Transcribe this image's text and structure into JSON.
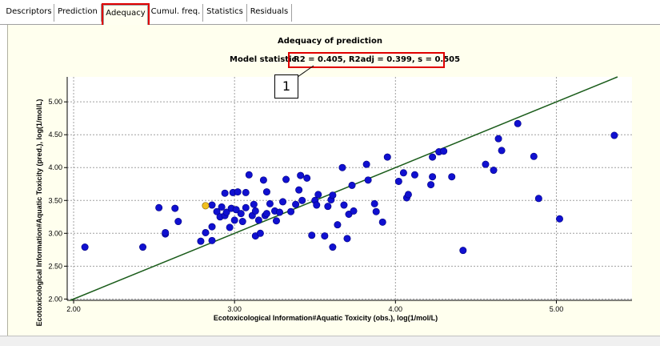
{
  "tabs": [
    {
      "label": "Descriptors"
    },
    {
      "label": "Prediction"
    },
    {
      "label": "Adequacy",
      "active": true
    },
    {
      "label": "Cumul. freq."
    },
    {
      "label": "Statistics"
    },
    {
      "label": "Residuals"
    }
  ],
  "header": {
    "title": "Adequacy of prediction",
    "stat_label": "Model statistic:",
    "stat_value": "R2 = 0.405,  R2adj = 0.399,  s = 0.505"
  },
  "callout": "1",
  "colors": {
    "highlight": "#e00000",
    "point": "#1010d0",
    "point_highlight": "#f0c020",
    "line": "#1a5c1a",
    "panel": "#ffffee"
  },
  "chart_data": {
    "type": "scatter",
    "title": "",
    "xlabel": "Ecotoxicological Information#Aquatic Toxicity (obs.), log(1/mol/L)",
    "ylabel": "Ecotoxicological Information#Aquatic Toxicity (pred.), log(1/mol/L)",
    "xlim": [
      1.96,
      5.47
    ],
    "ylim": [
      1.98,
      5.38
    ],
    "xticks": [
      "2.00",
      "3.00",
      "4.00",
      "5.00"
    ],
    "yticks": [
      "2.00",
      "2.50",
      "3.00",
      "3.50",
      "4.00",
      "4.50",
      "5.00"
    ],
    "grid": true,
    "reference_line": "y = x",
    "highlighted_point": {
      "x": 2.82,
      "y": 3.42
    },
    "points": [
      [
        2.07,
        2.79
      ],
      [
        2.43,
        2.79
      ],
      [
        2.53,
        3.39
      ],
      [
        2.57,
        2.99
      ],
      [
        2.57,
        3.01
      ],
      [
        2.63,
        3.38
      ],
      [
        2.65,
        3.18
      ],
      [
        2.79,
        2.88
      ],
      [
        2.82,
        3.01
      ],
      [
        2.86,
        2.89
      ],
      [
        2.86,
        3.1
      ],
      [
        2.86,
        3.43
      ],
      [
        2.89,
        3.33
      ],
      [
        2.91,
        3.25
      ],
      [
        2.92,
        3.4
      ],
      [
        2.94,
        3.27
      ],
      [
        2.94,
        3.61
      ],
      [
        2.95,
        3.32
      ],
      [
        2.97,
        3.09
      ],
      [
        2.98,
        3.38
      ],
      [
        2.99,
        3.62
      ],
      [
        3.0,
        3.2
      ],
      [
        3.01,
        3.36
      ],
      [
        3.02,
        3.63
      ],
      [
        3.04,
        3.3
      ],
      [
        3.05,
        3.18
      ],
      [
        3.07,
        3.39
      ],
      [
        3.07,
        3.62
      ],
      [
        3.09,
        3.89
      ],
      [
        3.11,
        3.27
      ],
      [
        3.12,
        3.44
      ],
      [
        3.13,
        3.34
      ],
      [
        3.13,
        2.96
      ],
      [
        3.15,
        3.2
      ],
      [
        3.16,
        3.0
      ],
      [
        3.18,
        3.81
      ],
      [
        3.19,
        3.27
      ],
      [
        3.2,
        3.3
      ],
      [
        3.2,
        3.63
      ],
      [
        3.22,
        3.45
      ],
      [
        3.25,
        3.34
      ],
      [
        3.26,
        3.19
      ],
      [
        3.28,
        3.32
      ],
      [
        3.3,
        3.48
      ],
      [
        3.32,
        3.82
      ],
      [
        3.35,
        3.33
      ],
      [
        3.38,
        3.44
      ],
      [
        3.4,
        3.66
      ],
      [
        3.41,
        3.88
      ],
      [
        3.42,
        3.5
      ],
      [
        3.45,
        3.84
      ],
      [
        3.48,
        2.97
      ],
      [
        3.5,
        3.5
      ],
      [
        3.51,
        3.43
      ],
      [
        3.52,
        3.59
      ],
      [
        3.56,
        2.96
      ],
      [
        3.58,
        3.41
      ],
      [
        3.6,
        3.51
      ],
      [
        3.61,
        3.58
      ],
      [
        3.61,
        2.79
      ],
      [
        3.64,
        3.13
      ],
      [
        3.67,
        4.0
      ],
      [
        3.68,
        3.43
      ],
      [
        3.7,
        2.92
      ],
      [
        3.71,
        3.29
      ],
      [
        3.73,
        3.73
      ],
      [
        3.74,
        3.34
      ],
      [
        3.82,
        4.05
      ],
      [
        3.83,
        3.81
      ],
      [
        3.87,
        3.45
      ],
      [
        3.88,
        3.33
      ],
      [
        3.92,
        3.17
      ],
      [
        3.95,
        4.16
      ],
      [
        4.02,
        3.79
      ],
      [
        4.05,
        3.92
      ],
      [
        4.07,
        3.54
      ],
      [
        4.08,
        3.59
      ],
      [
        4.12,
        3.89
      ],
      [
        4.22,
        3.74
      ],
      [
        4.23,
        3.86
      ],
      [
        4.23,
        4.16
      ],
      [
        4.27,
        4.24
      ],
      [
        4.3,
        4.25
      ],
      [
        4.35,
        3.86
      ],
      [
        4.42,
        2.74
      ],
      [
        4.56,
        4.05
      ],
      [
        4.61,
        3.96
      ],
      [
        4.64,
        4.44
      ],
      [
        4.66,
        4.26
      ],
      [
        4.76,
        4.67
      ],
      [
        4.86,
        4.17
      ],
      [
        4.89,
        3.53
      ],
      [
        5.02,
        3.22
      ],
      [
        5.36,
        4.49
      ]
    ]
  }
}
